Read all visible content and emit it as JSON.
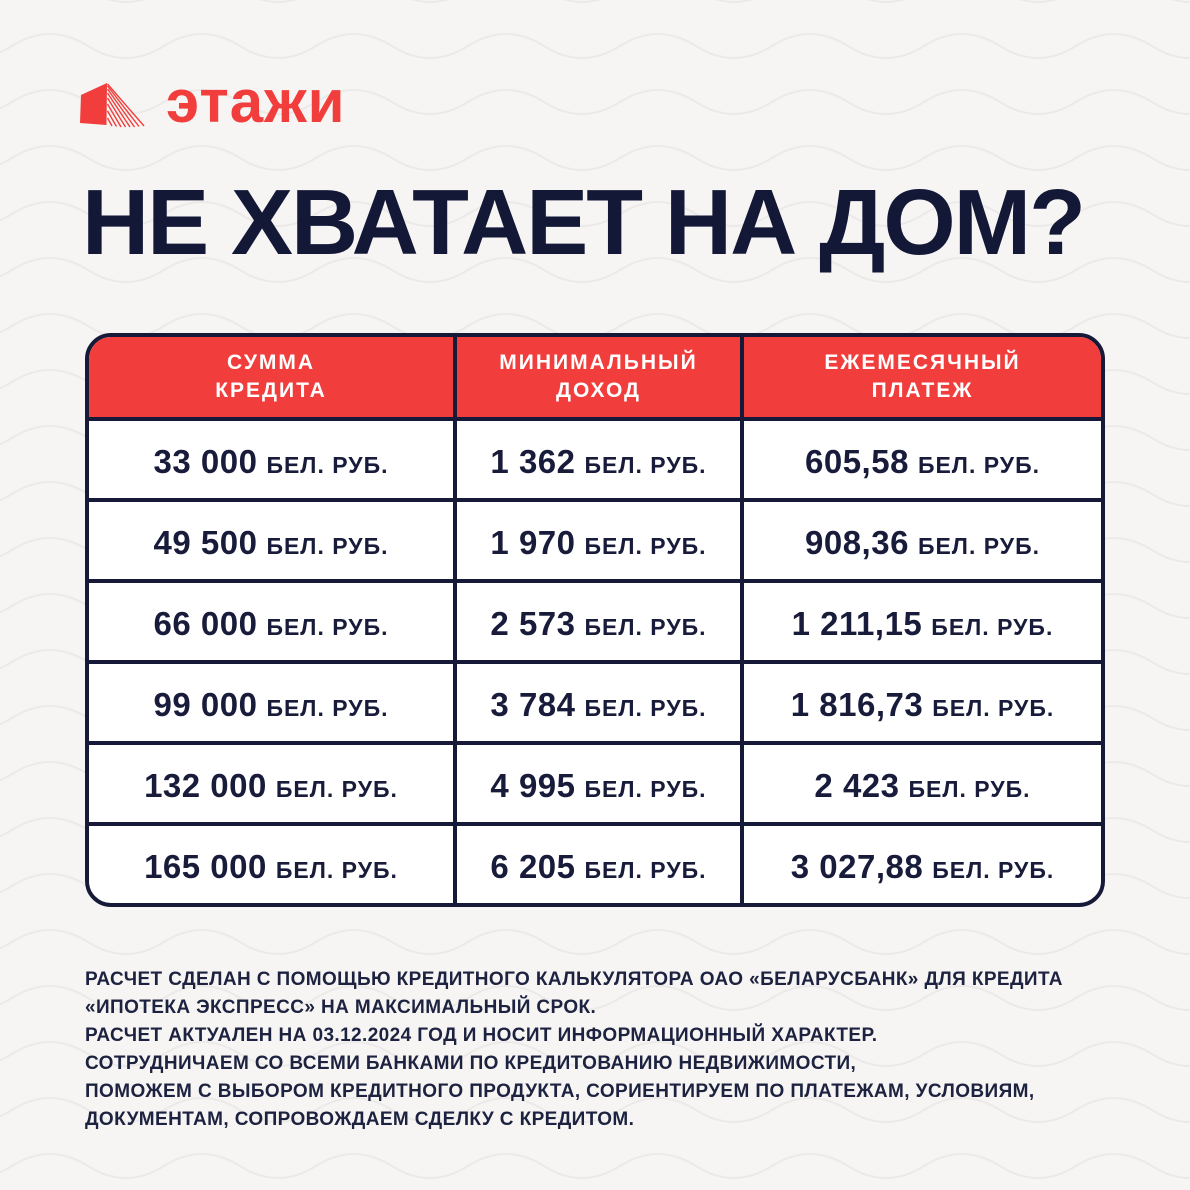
{
  "colors": {
    "accent_red": "#f13e3c",
    "navy_text": "#161a38",
    "background": "#f6f5f3",
    "header_text": "#ffffff"
  },
  "logo": {
    "text": "этажи",
    "icon": "etazhi-building-icon"
  },
  "headline": "НЕ ХВАТАЕТ НА ДОМ?",
  "table": {
    "unit": "БЕЛ. РУБ.",
    "headers": [
      {
        "line1": "СУММА",
        "line2": "КРЕДИТА"
      },
      {
        "line1": "МИНИМАЛЬНЫЙ",
        "line2": "ДОХОД"
      },
      {
        "line1": "ЕЖЕМЕСЯЧНЫЙ",
        "line2": "ПЛАТЕЖ"
      }
    ],
    "rows": [
      {
        "loan": "33 000",
        "income": "1 362",
        "payment": "605,58"
      },
      {
        "loan": "49 500",
        "income": "1 970",
        "payment": "908,36"
      },
      {
        "loan": "66 000",
        "income": "2 573",
        "payment": "1 211,15"
      },
      {
        "loan": "99 000",
        "income": "3 784",
        "payment": "1 816,73"
      },
      {
        "loan": "132 000",
        "income": "4 995",
        "payment": "2 423"
      },
      {
        "loan": "165 000",
        "income": "6 205",
        "payment": "3 027,88"
      }
    ]
  },
  "footer": {
    "lines": [
      "РАСЧЕТ СДЕЛАН С ПОМОЩЬЮ КРЕДИТНОГО КАЛЬКУЛЯТОРА ОАО «БЕЛАРУСБАНК» ДЛЯ КРЕДИТА",
      "«ИПОТЕКА ЭКСПРЕСС» НА МАКСИМАЛЬНЫЙ СРОК.",
      "РАСЧЕТ АКТУАЛЕН НА 03.12.2024 ГОД И НОСИТ ИНФОРМАЦИОННЫЙ ХАРАКТЕР.",
      "СОТРУДНИЧАЕМ СО ВСЕМИ БАНКАМИ ПО КРЕДИТОВАНИЮ НЕДВИЖИМОСТИ,",
      "ПОМОЖЕМ С ВЫБОРОМ КРЕДИТНОГО ПРОДУКТА, СОРИЕНТИРУЕМ ПО ПЛАТЕЖАМ, УСЛОВИЯМ,",
      "ДОКУМЕНТАМ, СОПРОВОЖДАЕМ СДЕЛКУ С КРЕДИТОМ."
    ]
  }
}
